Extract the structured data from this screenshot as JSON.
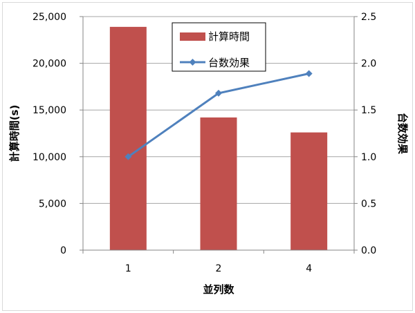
{
  "chart_data": {
    "type": "bar+line",
    "categories": [
      "1",
      "2",
      "4"
    ],
    "xlabel": "並列数",
    "ylabel": "計算時間(s)",
    "y2label": "台数効果",
    "ylim": [
      0,
      25000
    ],
    "y2lim": [
      0,
      2.5
    ],
    "yticks": [
      "0",
      "5,000",
      "10,000",
      "15,000",
      "20,000",
      "25,000"
    ],
    "y2ticks": [
      "0.0",
      "0.5",
      "1.0",
      "1.5",
      "2.0",
      "2.5"
    ],
    "grid": true,
    "legend_position": "top-center",
    "series": [
      {
        "name": "計算時間",
        "type": "bar",
        "axis": "left",
        "color": "#c0504d",
        "values": [
          23900,
          14200,
          12600
        ]
      },
      {
        "name": "台数効果",
        "type": "line",
        "axis": "right",
        "color": "#4f81bd",
        "marker": "diamond",
        "values": [
          1.0,
          1.68,
          1.89
        ]
      }
    ]
  }
}
